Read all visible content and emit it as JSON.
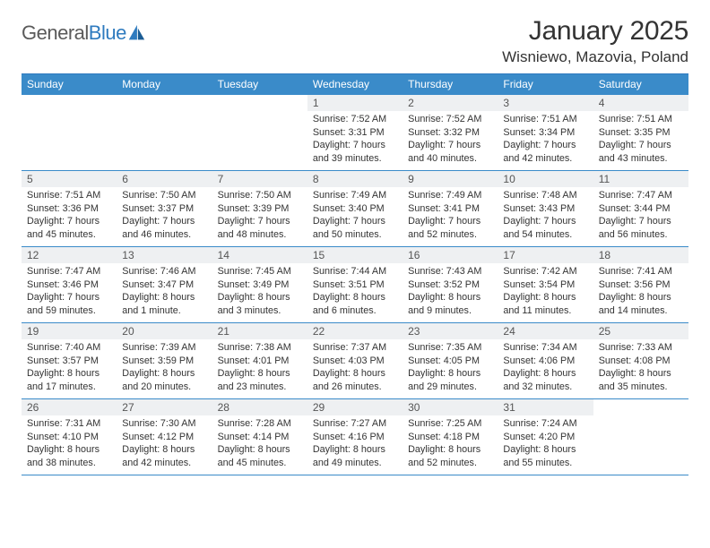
{
  "brand": {
    "name1": "General",
    "name2": "Blue"
  },
  "title": "January 2025",
  "location": "Wisniewo, Mazovia, Poland",
  "colors": {
    "header_bg": "#3a8bc9",
    "header_text": "#ffffff",
    "border": "#3a8bc9",
    "daynum_bg": "#eef0f2",
    "text": "#333333"
  },
  "day_names": [
    "Sunday",
    "Monday",
    "Tuesday",
    "Wednesday",
    "Thursday",
    "Friday",
    "Saturday"
  ],
  "weeks": [
    [
      {
        "n": "",
        "sr": "",
        "ss": "",
        "dl": ""
      },
      {
        "n": "",
        "sr": "",
        "ss": "",
        "dl": ""
      },
      {
        "n": "",
        "sr": "",
        "ss": "",
        "dl": ""
      },
      {
        "n": "1",
        "sr": "Sunrise: 7:52 AM",
        "ss": "Sunset: 3:31 PM",
        "dl": "Daylight: 7 hours and 39 minutes."
      },
      {
        "n": "2",
        "sr": "Sunrise: 7:52 AM",
        "ss": "Sunset: 3:32 PM",
        "dl": "Daylight: 7 hours and 40 minutes."
      },
      {
        "n": "3",
        "sr": "Sunrise: 7:51 AM",
        "ss": "Sunset: 3:34 PM",
        "dl": "Daylight: 7 hours and 42 minutes."
      },
      {
        "n": "4",
        "sr": "Sunrise: 7:51 AM",
        "ss": "Sunset: 3:35 PM",
        "dl": "Daylight: 7 hours and 43 minutes."
      }
    ],
    [
      {
        "n": "5",
        "sr": "Sunrise: 7:51 AM",
        "ss": "Sunset: 3:36 PM",
        "dl": "Daylight: 7 hours and 45 minutes."
      },
      {
        "n": "6",
        "sr": "Sunrise: 7:50 AM",
        "ss": "Sunset: 3:37 PM",
        "dl": "Daylight: 7 hours and 46 minutes."
      },
      {
        "n": "7",
        "sr": "Sunrise: 7:50 AM",
        "ss": "Sunset: 3:39 PM",
        "dl": "Daylight: 7 hours and 48 minutes."
      },
      {
        "n": "8",
        "sr": "Sunrise: 7:49 AM",
        "ss": "Sunset: 3:40 PM",
        "dl": "Daylight: 7 hours and 50 minutes."
      },
      {
        "n": "9",
        "sr": "Sunrise: 7:49 AM",
        "ss": "Sunset: 3:41 PM",
        "dl": "Daylight: 7 hours and 52 minutes."
      },
      {
        "n": "10",
        "sr": "Sunrise: 7:48 AM",
        "ss": "Sunset: 3:43 PM",
        "dl": "Daylight: 7 hours and 54 minutes."
      },
      {
        "n": "11",
        "sr": "Sunrise: 7:47 AM",
        "ss": "Sunset: 3:44 PM",
        "dl": "Daylight: 7 hours and 56 minutes."
      }
    ],
    [
      {
        "n": "12",
        "sr": "Sunrise: 7:47 AM",
        "ss": "Sunset: 3:46 PM",
        "dl": "Daylight: 7 hours and 59 minutes."
      },
      {
        "n": "13",
        "sr": "Sunrise: 7:46 AM",
        "ss": "Sunset: 3:47 PM",
        "dl": "Daylight: 8 hours and 1 minute."
      },
      {
        "n": "14",
        "sr": "Sunrise: 7:45 AM",
        "ss": "Sunset: 3:49 PM",
        "dl": "Daylight: 8 hours and 3 minutes."
      },
      {
        "n": "15",
        "sr": "Sunrise: 7:44 AM",
        "ss": "Sunset: 3:51 PM",
        "dl": "Daylight: 8 hours and 6 minutes."
      },
      {
        "n": "16",
        "sr": "Sunrise: 7:43 AM",
        "ss": "Sunset: 3:52 PM",
        "dl": "Daylight: 8 hours and 9 minutes."
      },
      {
        "n": "17",
        "sr": "Sunrise: 7:42 AM",
        "ss": "Sunset: 3:54 PM",
        "dl": "Daylight: 8 hours and 11 minutes."
      },
      {
        "n": "18",
        "sr": "Sunrise: 7:41 AM",
        "ss": "Sunset: 3:56 PM",
        "dl": "Daylight: 8 hours and 14 minutes."
      }
    ],
    [
      {
        "n": "19",
        "sr": "Sunrise: 7:40 AM",
        "ss": "Sunset: 3:57 PM",
        "dl": "Daylight: 8 hours and 17 minutes."
      },
      {
        "n": "20",
        "sr": "Sunrise: 7:39 AM",
        "ss": "Sunset: 3:59 PM",
        "dl": "Daylight: 8 hours and 20 minutes."
      },
      {
        "n": "21",
        "sr": "Sunrise: 7:38 AM",
        "ss": "Sunset: 4:01 PM",
        "dl": "Daylight: 8 hours and 23 minutes."
      },
      {
        "n": "22",
        "sr": "Sunrise: 7:37 AM",
        "ss": "Sunset: 4:03 PM",
        "dl": "Daylight: 8 hours and 26 minutes."
      },
      {
        "n": "23",
        "sr": "Sunrise: 7:35 AM",
        "ss": "Sunset: 4:05 PM",
        "dl": "Daylight: 8 hours and 29 minutes."
      },
      {
        "n": "24",
        "sr": "Sunrise: 7:34 AM",
        "ss": "Sunset: 4:06 PM",
        "dl": "Daylight: 8 hours and 32 minutes."
      },
      {
        "n": "25",
        "sr": "Sunrise: 7:33 AM",
        "ss": "Sunset: 4:08 PM",
        "dl": "Daylight: 8 hours and 35 minutes."
      }
    ],
    [
      {
        "n": "26",
        "sr": "Sunrise: 7:31 AM",
        "ss": "Sunset: 4:10 PM",
        "dl": "Daylight: 8 hours and 38 minutes."
      },
      {
        "n": "27",
        "sr": "Sunrise: 7:30 AM",
        "ss": "Sunset: 4:12 PM",
        "dl": "Daylight: 8 hours and 42 minutes."
      },
      {
        "n": "28",
        "sr": "Sunrise: 7:28 AM",
        "ss": "Sunset: 4:14 PM",
        "dl": "Daylight: 8 hours and 45 minutes."
      },
      {
        "n": "29",
        "sr": "Sunrise: 7:27 AM",
        "ss": "Sunset: 4:16 PM",
        "dl": "Daylight: 8 hours and 49 minutes."
      },
      {
        "n": "30",
        "sr": "Sunrise: 7:25 AM",
        "ss": "Sunset: 4:18 PM",
        "dl": "Daylight: 8 hours and 52 minutes."
      },
      {
        "n": "31",
        "sr": "Sunrise: 7:24 AM",
        "ss": "Sunset: 4:20 PM",
        "dl": "Daylight: 8 hours and 55 minutes."
      },
      {
        "n": "",
        "sr": "",
        "ss": "",
        "dl": ""
      }
    ]
  ]
}
